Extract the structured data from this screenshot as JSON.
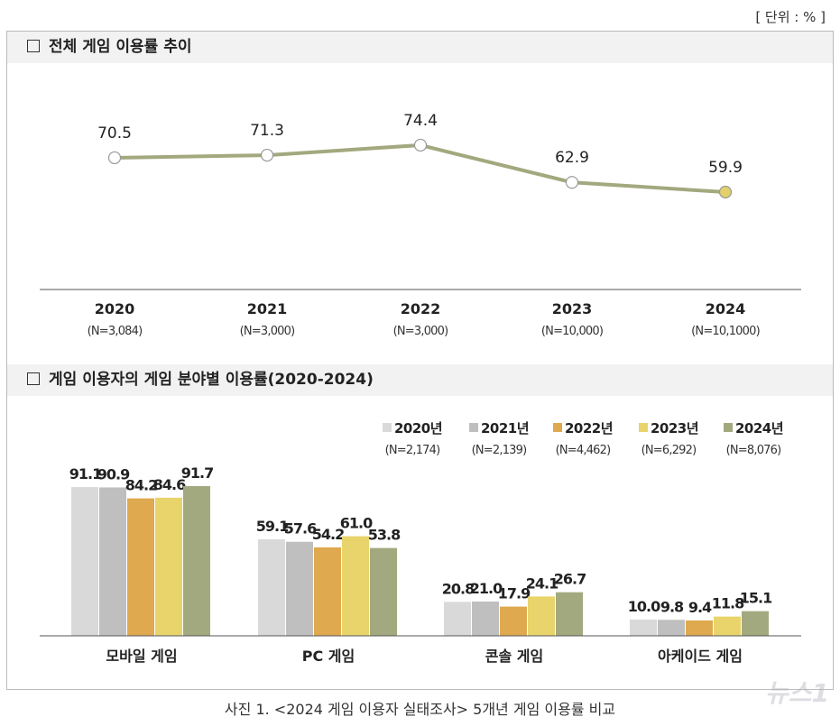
{
  "unit_label": "[ 단위 : % ]",
  "caption": "사진 1. <2024 게임 이용자 실태조사> 5개년 게임 이용률 비교",
  "watermark": "뉴스1",
  "colors": {
    "line": "#a3a87e",
    "last_point": "#e2d06c",
    "header_bg": "#f2f2f2"
  },
  "chart_data": [
    {
      "type": "line",
      "title": "전체 게임 이용률 추이",
      "categories": [
        "2020",
        "2021",
        "2022",
        "2023",
        "2024"
      ],
      "sublabels": [
        "(N=3,084)",
        "(N=3,000)",
        "(N=3,000)",
        "(N=10,000)",
        "(N=10,1000)"
      ],
      "values": [
        70.5,
        71.3,
        74.4,
        62.9,
        59.9
      ],
      "labels": [
        "70.5",
        "71.3",
        "74.4",
        "62.9",
        "59.9"
      ],
      "grid": false
    },
    {
      "type": "bar",
      "title": "게임 이용자의 게임 분야별 이용률(2020-2024)",
      "categories": [
        "모바일 게임",
        "PC 게임",
        "콘솔 게임",
        "아케이드 게임"
      ],
      "legend_position": "top-right",
      "series": [
        {
          "name": "2020년",
          "sub": "(N=2,174)",
          "color": "#d9d9d9",
          "values": [
            91.1,
            59.1,
            20.8,
            10.0
          ],
          "labels": [
            "91.1",
            "59.1",
            "20.8",
            "10.0"
          ]
        },
        {
          "name": "2021년",
          "sub": "(N=2,139)",
          "color": "#bfbfbf",
          "values": [
            90.9,
            57.6,
            21.0,
            9.8
          ],
          "labels": [
            "90.9",
            "57.6",
            "21.0",
            "9.8"
          ]
        },
        {
          "name": "2022년",
          "sub": "(N=4,462)",
          "color": "#dfa94f",
          "values": [
            84.2,
            54.2,
            17.9,
            9.4
          ],
          "labels": [
            "84.2",
            "54.2",
            "17.9",
            "9.4"
          ]
        },
        {
          "name": "2023년",
          "sub": "(N=6,292)",
          "color": "#e9d46c",
          "values": [
            84.6,
            61.0,
            24.1,
            11.8
          ],
          "labels": [
            "84.6",
            "61.0",
            "24.1",
            "11.8"
          ]
        },
        {
          "name": "2024년",
          "sub": "(N=8,076)",
          "color": "#a3a97f",
          "values": [
            91.7,
            53.8,
            26.7,
            15.1
          ],
          "labels": [
            "91.7",
            "53.8",
            "26.7",
            "15.1"
          ]
        }
      ],
      "grid": false
    }
  ]
}
